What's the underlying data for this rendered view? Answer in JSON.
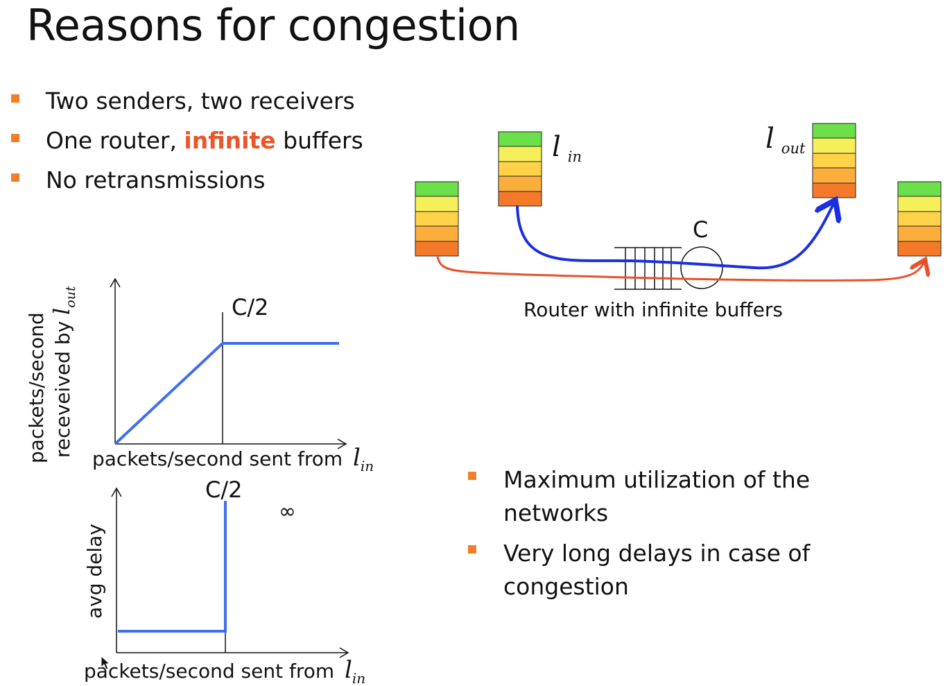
{
  "slide": {
    "title": "Reasons for congestion",
    "bullets_top": [
      {
        "pre": "Two senders, two receivers",
        "highlight": "",
        "post": ""
      },
      {
        "pre": "One router, ",
        "highlight": "infinite",
        "post": " buffers"
      },
      {
        "pre": "No retransmissions",
        "highlight": "",
        "post": ""
      }
    ],
    "bullets_bottom": [
      "Maximum utilization of the networks",
      "Very long delays in case of congestion"
    ]
  },
  "diagram": {
    "lambda_in": "l",
    "lambda_in_sub": "in",
    "lambda_out": "l",
    "lambda_out_sub": "out",
    "capacity_label": "C",
    "router_caption": "Router with infinite buffers",
    "colors": {
      "blue_flow": "#1a2fe0",
      "red_flow": "#e8502a",
      "stack": [
        "#6be04a",
        "#f5f05a",
        "#ffd24a",
        "#fbae3c",
        "#f47a2a"
      ]
    }
  },
  "plot1": {
    "ylabel_line1": "packets/second",
    "ylabel_line2": "receveived by ",
    "ylabel_var": "l",
    "ylabel_sub": "out",
    "xlabel": "packets/second sent from ",
    "x_var": "l",
    "x_sub": "in",
    "marker_label": "C/2"
  },
  "plot2": {
    "ylabel": "avg delay",
    "xlabel": "packets/second sent from ",
    "x_var": "l",
    "x_sub": "in",
    "marker_label": "C/2",
    "infinity_label": "∞"
  },
  "chart_data": [
    {
      "type": "line",
      "title": "",
      "xlabel": "packets/second sent from lin",
      "ylabel": "packets/second receveived by lout",
      "annotations": [
        "C/2"
      ],
      "series": [
        {
          "x": [
            0,
            0.5,
            1.0
          ],
          "y": [
            0,
            0.5,
            0.5
          ]
        }
      ],
      "units_note": "x and y in units of C"
    },
    {
      "type": "line",
      "title": "",
      "xlabel": "packets/second sent from lin",
      "ylabel": "avg delay",
      "annotations": [
        "C/2",
        "∞"
      ],
      "series": [
        {
          "x": [
            0,
            0.5,
            0.5
          ],
          "y": [
            "low",
            "low",
            "∞"
          ]
        }
      ]
    }
  ]
}
